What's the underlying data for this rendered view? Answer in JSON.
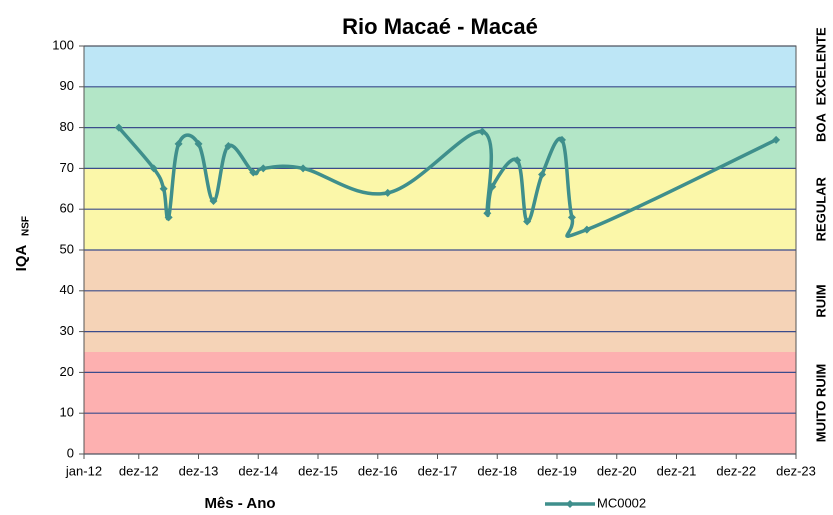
{
  "chart_data": {
    "type": "line",
    "title": "Rio Macaé - Macaé",
    "ylabel": "IQA",
    "ylabel_sub": "NSF",
    "xlabel": "Mês - Ano",
    "xlim": [
      "2012-01",
      "2023-12"
    ],
    "xticks": [
      {
        "value": "2012-01",
        "label": "jan-12"
      },
      {
        "value": "2012-12",
        "label": "dez-12"
      },
      {
        "value": "2013-12",
        "label": "dez-13"
      },
      {
        "value": "2014-12",
        "label": "dez-14"
      },
      {
        "value": "2015-12",
        "label": "dez-15"
      },
      {
        "value": "2016-12",
        "label": "dez-16"
      },
      {
        "value": "2017-12",
        "label": "dez-17"
      },
      {
        "value": "2018-12",
        "label": "dez-18"
      },
      {
        "value": "2019-12",
        "label": "dez-19"
      },
      {
        "value": "2020-12",
        "label": "dez-20"
      },
      {
        "value": "2021-12",
        "label": "dez-21"
      },
      {
        "value": "2022-12",
        "label": "dez-22"
      },
      {
        "value": "2023-12",
        "label": "dez-23"
      }
    ],
    "ylim": [
      0,
      100
    ],
    "yticks": [
      0,
      10,
      20,
      30,
      40,
      50,
      60,
      70,
      80,
      90,
      100
    ],
    "bands": [
      {
        "from": 0,
        "to": 25,
        "color": "#fdb0b0",
        "label": "MUITO RUIM"
      },
      {
        "from": 25,
        "to": 50,
        "color": "#f5d3b7",
        "label": "RUIM"
      },
      {
        "from": 50,
        "to": 70,
        "color": "#fbf7a9",
        "label": "REGULAR"
      },
      {
        "from": 70,
        "to": 90,
        "color": "#b3e6c7",
        "label": "BOA"
      },
      {
        "from": 90,
        "to": 100,
        "color": "#bde6f6",
        "label": "EXCELENTE"
      }
    ],
    "series": [
      {
        "name": "MC0002",
        "color": "#3f8f8c",
        "x": [
          "2012-08",
          "2013-03",
          "2013-05",
          "2013-06",
          "2013-08",
          "2013-12",
          "2014-03",
          "2014-06",
          "2014-11",
          "2015-01",
          "2015-09",
          "2017-02",
          "2018-09",
          "2018-10",
          "2018-11",
          "2019-04",
          "2019-06",
          "2019-09",
          "2020-01",
          "2020-03",
          "2020-06",
          "2023-08"
        ],
        "values": [
          80,
          70,
          65,
          58,
          76,
          76,
          62,
          75.5,
          69,
          70,
          70,
          64,
          79,
          59,
          65.5,
          72,
          57,
          68.5,
          77,
          58,
          55,
          77
        ]
      }
    ]
  }
}
